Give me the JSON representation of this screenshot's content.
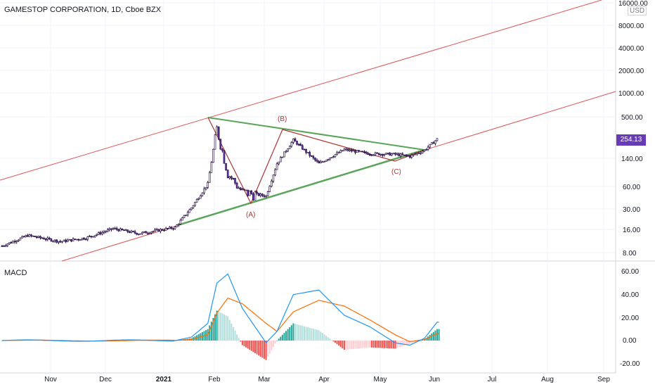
{
  "header": {
    "title": "GAMESTOP CORPORATION, 1D, Cboe BZX",
    "currency": "USD",
    "last_price": "254.13"
  },
  "macd_panel": {
    "title": "MACD"
  },
  "colors": {
    "candle_up": "#ffffff",
    "candle_body_border": "#1a0033",
    "candle_down": "#673ab7",
    "channel": "#e05555",
    "triangle": "#5aa55a",
    "wave": "#b33333",
    "macd_line": "#2196f3",
    "signal_line": "#ff6d00",
    "hist_pos_strong": "#26a69a",
    "hist_pos_weak": "#b2dfdb",
    "hist_neg_strong": "#ef5350",
    "hist_neg_weak": "#ffcdd2",
    "grid": "#f0f3fa",
    "axis_text": "#131722"
  },
  "chart_data": [
    {
      "type": "candlestick",
      "title": "GAMESTOP CORPORATION, 1D, Cboe BZX",
      "scale": "log",
      "y_ticks": [
        "8.00",
        "16.00",
        "30.00",
        "60.00",
        "140.00",
        "500.00",
        "1000.00",
        "2000.00",
        "4000.00",
        "8000.00",
        "16000.00"
      ],
      "x_ticks": [
        "Nov",
        "Dec",
        "2021",
        "Feb",
        "Mar",
        "Apr",
        "May",
        "Jun",
        "Jul",
        "Aug",
        "Sep"
      ],
      "last_price": 254.13,
      "series": [
        {
          "name": "Close",
          "x": [
            "Oct 01",
            "Oct 15",
            "Nov 02",
            "Nov 16",
            "Dec 01",
            "Dec 15",
            "Jan 04",
            "Jan 13",
            "Jan 22",
            "Jan 27",
            "Feb 02",
            "Feb 10",
            "Feb 23",
            "Mar 01",
            "Mar 10",
            "Mar 24",
            "Apr 07",
            "Apr 21",
            "May 05",
            "May 13",
            "May 21",
            "May 28"
          ],
          "values": [
            9.8,
            13.5,
            11.2,
            12.5,
            16.6,
            14.3,
            17.2,
            31.4,
            65.0,
            347.5,
            90.0,
            50.3,
            44.9,
            120.4,
            246.9,
            120.3,
            184.5,
            162.4,
            159.9,
            150.0,
            180.6,
            254.13
          ]
        }
      ],
      "annotations": [
        "(A)",
        "(B)",
        "(C)"
      ]
    },
    {
      "type": "line",
      "title": "MACD",
      "y_ticks": [
        "-20.00",
        "0.00",
        "20.00",
        "40.00",
        "60.00"
      ],
      "ylim": [
        -22,
        65
      ],
      "x": [
        "Jan 04",
        "Jan 13",
        "Jan 22",
        "Jan 27",
        "Feb 02",
        "Feb 10",
        "Feb 23",
        "Mar 01",
        "Mar 10",
        "Mar 24",
        "Apr 07",
        "Apr 21",
        "May 05",
        "May 13",
        "May 21",
        "May 28"
      ],
      "series": [
        {
          "name": "MACD",
          "values": [
            0,
            3,
            15,
            50,
            58,
            28,
            -2,
            8,
            40,
            44,
            22,
            12,
            -2,
            -4,
            2,
            16
          ]
        },
        {
          "name": "Signal",
          "values": [
            0,
            1,
            5,
            24,
            37,
            32,
            15,
            8,
            25,
            35,
            30,
            18,
            5,
            -1,
            1,
            6
          ]
        },
        {
          "name": "Histogram",
          "values": [
            0,
            2,
            10,
            26,
            21,
            -4,
            -17,
            0,
            15,
            9,
            -8,
            -6,
            -7,
            -3,
            1,
            10
          ]
        }
      ]
    }
  ]
}
